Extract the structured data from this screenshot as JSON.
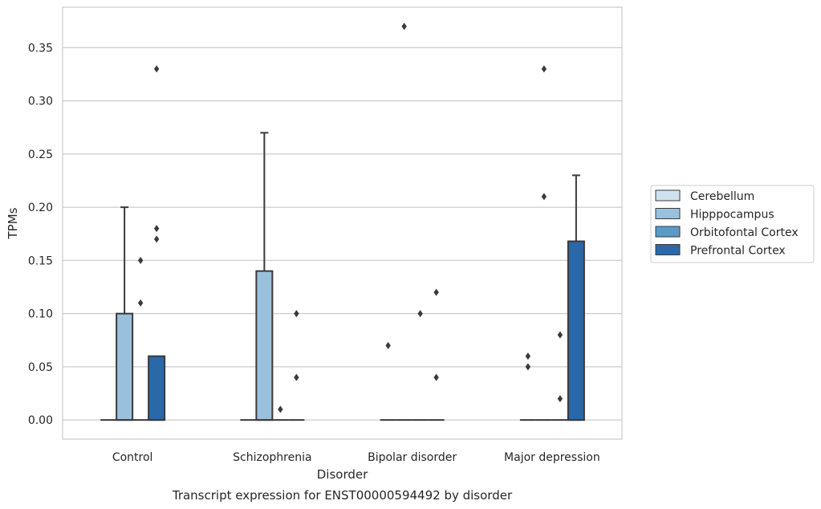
{
  "chart_data": {
    "type": "box",
    "title": "",
    "caption": "Transcript expression for ENST00000594492 by disorder",
    "xlabel": "Disorder",
    "ylabel": "TPMs",
    "ylim": [
      -0.018,
      0.388
    ],
    "yticks": [
      0.0,
      0.05,
      0.1,
      0.15,
      0.2,
      0.25,
      0.3,
      0.35
    ],
    "ytick_labels": [
      "0.00",
      "0.05",
      "0.10",
      "0.15",
      "0.20",
      "0.25",
      "0.30",
      "0.35"
    ],
    "grid": "horizontal",
    "legend_position": "right",
    "categories": [
      "Control",
      "Schizophrenia",
      "Bipolar disorder",
      "Major depression"
    ],
    "series": [
      {
        "name": "Cerebellum",
        "color": "#d0e1f0",
        "boxes": [
          {
            "q1": 0,
            "median": 0,
            "q3": 0,
            "whisker_low": 0,
            "whisker_high": 0,
            "outliers": []
          },
          {
            "q1": 0,
            "median": 0,
            "q3": 0,
            "whisker_low": 0,
            "whisker_high": 0,
            "outliers": []
          },
          {
            "q1": 0,
            "median": 0,
            "q3": 0,
            "whisker_low": 0,
            "whisker_high": 0,
            "outliers": [
              0.07
            ]
          },
          {
            "q1": 0,
            "median": 0,
            "q3": 0,
            "whisker_low": 0,
            "whisker_high": 0,
            "outliers": [
              0.05,
              0.06
            ]
          }
        ]
      },
      {
        "name": "Hipppocampus",
        "color": "#9ac1dc",
        "boxes": [
          {
            "q1": 0,
            "median": 0,
            "q3": 0.1,
            "whisker_low": 0,
            "whisker_high": 0.2,
            "outliers": []
          },
          {
            "q1": 0,
            "median": 0,
            "q3": 0.14,
            "whisker_low": 0,
            "whisker_high": 0.27,
            "outliers": []
          },
          {
            "q1": 0,
            "median": 0,
            "q3": 0,
            "whisker_low": 0,
            "whisker_high": 0,
            "outliers": [
              0.37
            ]
          },
          {
            "q1": 0,
            "median": 0,
            "q3": 0,
            "whisker_low": 0,
            "whisker_high": 0,
            "outliers": [
              0.21,
              0.33
            ]
          }
        ]
      },
      {
        "name": "Orbitofontal Cortex",
        "color": "#5a9ac6",
        "boxes": [
          {
            "q1": 0,
            "median": 0,
            "q3": 0,
            "whisker_low": 0,
            "whisker_high": 0,
            "outliers": [
              0.11,
              0.15
            ]
          },
          {
            "q1": 0,
            "median": 0,
            "q3": 0,
            "whisker_low": 0,
            "whisker_high": 0,
            "outliers": [
              0.01
            ]
          },
          {
            "q1": 0,
            "median": 0,
            "q3": 0,
            "whisker_low": 0,
            "whisker_high": 0,
            "outliers": [
              0.1
            ]
          },
          {
            "q1": 0,
            "median": 0,
            "q3": 0,
            "whisker_low": 0,
            "whisker_high": 0,
            "outliers": [
              0.02,
              0.08
            ]
          }
        ]
      },
      {
        "name": "Prefrontal Cortex",
        "color": "#2a68a8",
        "boxes": [
          {
            "q1": 0,
            "median": 0,
            "q3": 0.06,
            "whisker_low": 0,
            "whisker_high": 0.06,
            "outliers": [
              0.17,
              0.18,
              0.33
            ]
          },
          {
            "q1": 0,
            "median": 0,
            "q3": 0,
            "whisker_low": 0,
            "whisker_high": 0,
            "outliers": [
              0.04,
              0.1
            ]
          },
          {
            "q1": 0,
            "median": 0,
            "q3": 0,
            "whisker_low": 0,
            "whisker_high": 0,
            "outliers": [
              0.04,
              0.12
            ]
          },
          {
            "q1": 0,
            "median": 0,
            "q3": 0.168,
            "whisker_low": 0,
            "whisker_high": 0.23,
            "outliers": []
          }
        ]
      }
    ]
  }
}
